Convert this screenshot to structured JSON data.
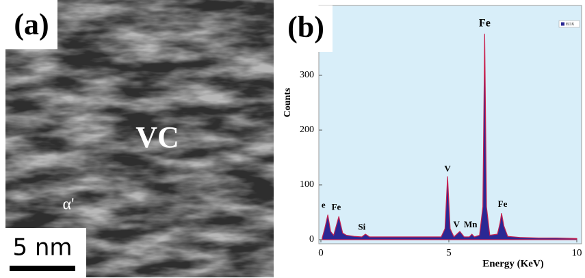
{
  "image_panel": {
    "label": "(a)",
    "annotations": [
      "VC",
      "α'"
    ],
    "scale_bar": "5 nm"
  },
  "chart_data": {
    "type": "area",
    "panel_label": "(b)",
    "x_label": "Energy (KeV)",
    "y_label": "Counts",
    "x": [
      0.05,
      0.15,
      0.27,
      0.38,
      0.5,
      0.7,
      0.85,
      1.0,
      1.3,
      1.6,
      1.74,
      1.9,
      2.3,
      2.8,
      3.3,
      3.8,
      4.3,
      4.7,
      4.85,
      4.95,
      5.05,
      5.2,
      5.43,
      5.6,
      5.8,
      5.9,
      6.0,
      6.2,
      6.33,
      6.4,
      6.47,
      6.6,
      6.9,
      7.0,
      7.06,
      7.15,
      7.3,
      7.8,
      8.5,
      9.2,
      10.0
    ],
    "series": [
      {
        "name": "EDX",
        "color": "#2a2894",
        "values": [
          3,
          20,
          45,
          15,
          8,
          42,
          12,
          8,
          6,
          5,
          10,
          5,
          5,
          5,
          5,
          5,
          5,
          5,
          20,
          115,
          20,
          5,
          15,
          5,
          5,
          10,
          5,
          8,
          60,
          375,
          60,
          8,
          10,
          30,
          48,
          25,
          6,
          4,
          3,
          3,
          2
        ]
      }
    ],
    "xlim": [
      0,
      10
    ],
    "xticks": [
      0,
      5,
      10
    ],
    "ylim": [
      0,
      425
    ],
    "yticks": [
      0,
      100,
      200,
      300
    ],
    "legend": "upper right",
    "annotations": [
      {
        "text": "e",
        "x": 0.1,
        "y": 62
      },
      {
        "text": "Fe",
        "x": 0.6,
        "y": 58
      },
      {
        "text": "Si",
        "x": 1.6,
        "y": 22
      },
      {
        "text": "V",
        "x": 4.95,
        "y": 128
      },
      {
        "text": "V",
        "x": 5.3,
        "y": 26
      },
      {
        "text": "Mn",
        "x": 5.85,
        "y": 26
      },
      {
        "text": "Fe",
        "x": 6.4,
        "y": 394
      },
      {
        "text": "Fe",
        "x": 7.1,
        "y": 64
      }
    ]
  }
}
